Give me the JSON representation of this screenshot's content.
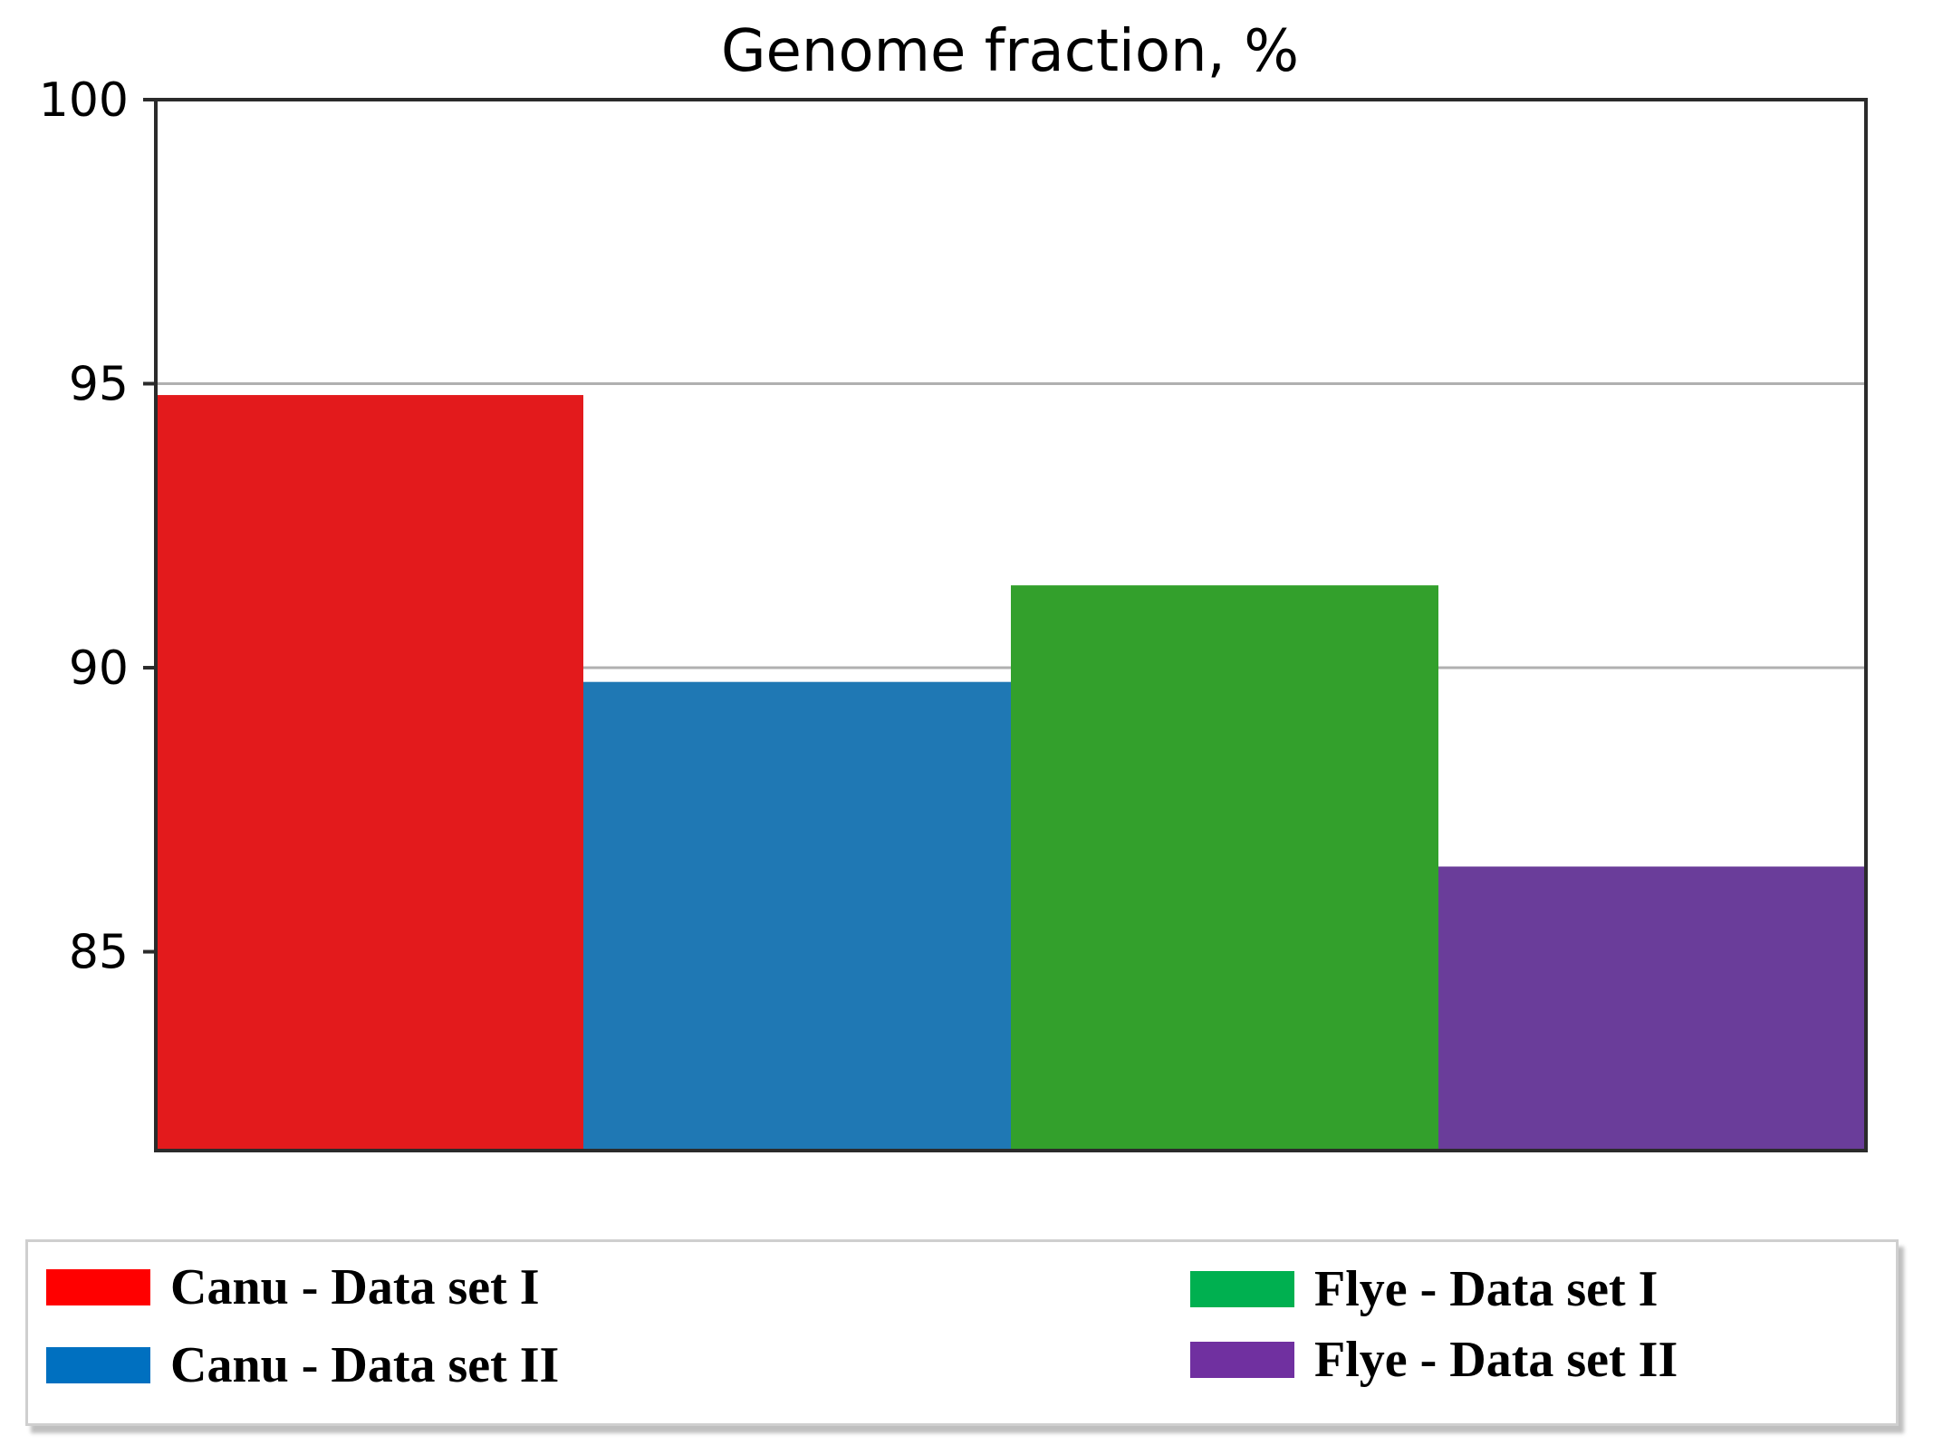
{
  "chart_data": {
    "type": "bar",
    "title": "Genome fraction, %",
    "xlabel": "",
    "ylabel": "",
    "ylim": [
      81.5,
      100
    ],
    "yticks": [
      85,
      90,
      95,
      100
    ],
    "grid": true,
    "legend_position": "bottom",
    "series": [
      {
        "name": "Canu - Data set I",
        "value": 94.8,
        "color": "#e31a1c",
        "legend_color": "#ff0000"
      },
      {
        "name": "Canu - Data set II",
        "value": 89.75,
        "color": "#1f78b4",
        "legend_color": "#0070c0"
      },
      {
        "name": "Flye - Data set I",
        "value": 91.45,
        "color": "#33a02c",
        "legend_color": "#00b050"
      },
      {
        "name": "Flye - Data set II",
        "value": 86.5,
        "color": "#6a3d9a",
        "legend_color": "#7030a0"
      }
    ]
  }
}
